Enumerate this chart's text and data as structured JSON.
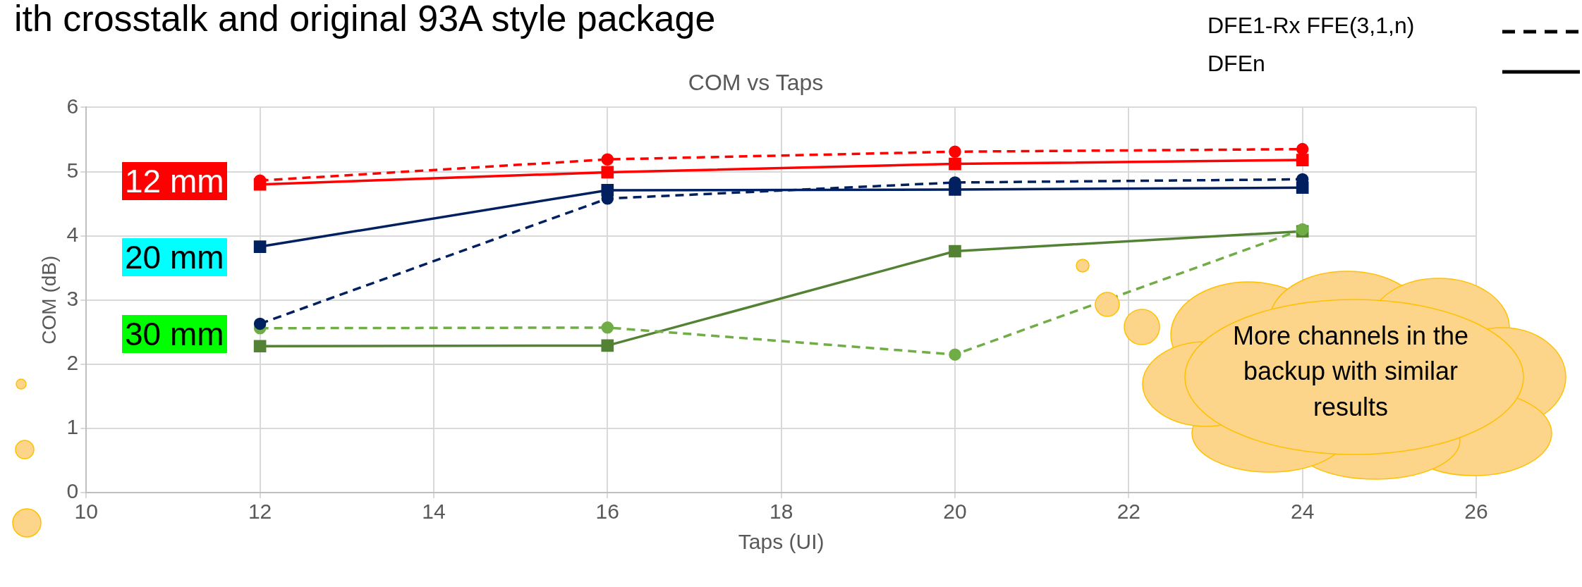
{
  "chart_data": {
    "type": "line",
    "title": "COM vs Taps",
    "xlabel": "Taps (UI)",
    "ylabel": "COM (dB)",
    "x": [
      12,
      16,
      20,
      24
    ],
    "xlim": [
      10,
      26
    ],
    "xticks": [
      10,
      12,
      14,
      16,
      18,
      20,
      22,
      24,
      26
    ],
    "ylim": [
      0,
      6
    ],
    "yticks": [
      0,
      1,
      2,
      3,
      4,
      5,
      6
    ],
    "grid": true,
    "series": [
      {
        "color": "#ff0000",
        "values": [
          4.8,
          4.99,
          5.12,
          5.18
        ],
        "marker": "square",
        "line_style": "solid"
      },
      {
        "color": "#ff0000",
        "values": [
          4.86,
          5.19,
          5.31,
          5.35
        ],
        "marker": "circle",
        "line_style": "dashed"
      },
      {
        "color": "#002060",
        "values": [
          3.83,
          4.71,
          4.72,
          4.75
        ],
        "marker": "square",
        "line_style": "solid"
      },
      {
        "color": "#002060",
        "values": [
          2.63,
          4.58,
          4.83,
          4.88
        ],
        "marker": "circle",
        "line_style": "dashed"
      },
      {
        "color": "#548235",
        "values": [
          2.28,
          2.29,
          3.76,
          4.07
        ],
        "marker": "square",
        "line_style": "solid"
      },
      {
        "color": "#70ad47",
        "values": [
          2.56,
          2.57,
          2.15,
          4.1
        ],
        "marker": "circle",
        "line_style": "dashed"
      }
    ],
    "annotations": [
      "ith crosstalk and original 93A style package",
      "DFE1-Rx FFE(3,1,n)",
      "DFEn",
      "12 mm",
      "20 mm",
      "30 mm",
      "More channels in the backup with similar results"
    ]
  }
}
